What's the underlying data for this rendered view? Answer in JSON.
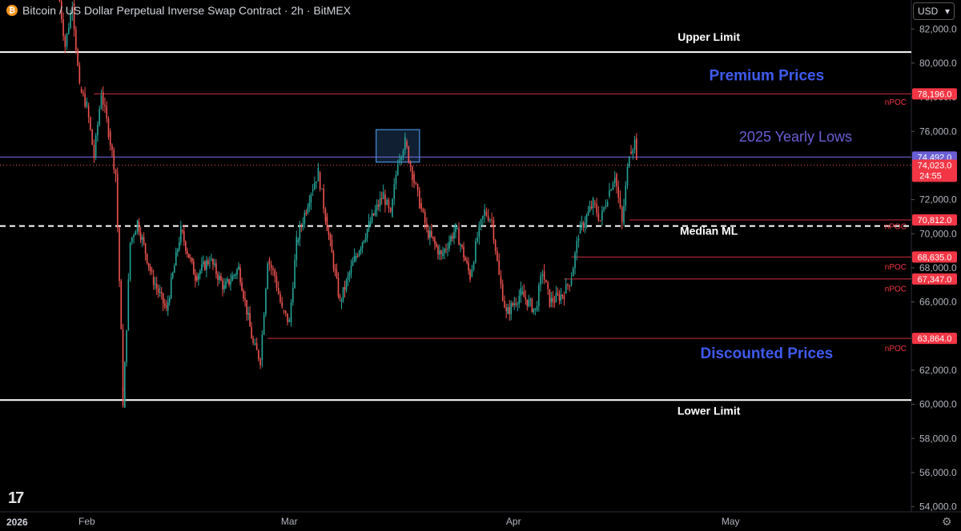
{
  "header": {
    "title": "Bitcoin / US Dollar Perpetual Inverse Swap Contract · 2h · BitMEX",
    "currency": "USD",
    "currency_caret": "▾",
    "btc_glyph": "₿",
    "year": "2026",
    "logo_text": "17",
    "settings_icon": "gear-icon"
  },
  "chart_data": {
    "type": "candlestick",
    "title": "Bitcoin / US Dollar Perpetual Inverse Swap Contract · 2h · BitMEX",
    "timeframe": "2h",
    "exchange": "BitMEX",
    "x_range": [
      "2026-01-20",
      "2026-05-26"
    ],
    "y_range": [
      53700,
      83700
    ],
    "x_ticks": [
      {
        "label": "Feb",
        "date": "2026-02-01"
      },
      {
        "label": "Mar",
        "date": "2026-03-01"
      },
      {
        "label": "Apr",
        "date": "2026-04-01"
      },
      {
        "label": "May",
        "date": "2026-05-01"
      }
    ],
    "y_ticks": [
      "54,000.0",
      "56,000.0",
      "58,000.0",
      "60,000.0",
      "62,000.0",
      "64,000.0",
      "66,000.0",
      "68,000.0",
      "70,000.0",
      "72,000.0",
      "74,000.0",
      "76,000.0",
      "78,000.0",
      "80,000.0",
      "82,000.0"
    ],
    "y_tick_values": [
      54000,
      56000,
      58000,
      60000,
      62000,
      64000,
      66000,
      68000,
      70000,
      72000,
      74000,
      76000,
      78000,
      80000,
      82000
    ],
    "price_path": [
      [
        "2026-01-28",
        84500
      ],
      [
        "2026-01-29",
        81000
      ],
      [
        "2026-01-30",
        83500
      ],
      [
        "2026-01-31",
        78500
      ],
      [
        "2026-02-01",
        77500
      ],
      [
        "2026-02-02",
        74500
      ],
      [
        "2026-02-03",
        78300
      ],
      [
        "2026-02-04",
        76000
      ],
      [
        "2026-02-05",
        73500
      ],
      [
        "2026-02-06",
        61000
      ],
      [
        "2026-02-06",
        59800
      ],
      [
        "2026-02-07",
        69500
      ],
      [
        "2026-02-08",
        70700
      ],
      [
        "2026-02-10",
        67500
      ],
      [
        "2026-02-12",
        65500
      ],
      [
        "2026-02-14",
        70200
      ],
      [
        "2026-02-16",
        67500
      ],
      [
        "2026-02-18",
        68500
      ],
      [
        "2026-02-20",
        66800
      ],
      [
        "2026-02-22",
        68000
      ],
      [
        "2026-02-24",
        63500
      ],
      [
        "2026-02-25",
        62600
      ],
      [
        "2026-02-26",
        68500
      ],
      [
        "2026-02-27",
        67500
      ],
      [
        "2026-02-28",
        65500
      ],
      [
        "2026-03-01",
        64800
      ],
      [
        "2026-03-02",
        69500
      ],
      [
        "2026-03-04",
        72500
      ],
      [
        "2026-03-05",
        73600
      ],
      [
        "2026-03-06",
        71000
      ],
      [
        "2026-03-08",
        66000
      ],
      [
        "2026-03-10",
        68500
      ],
      [
        "2026-03-12",
        70500
      ],
      [
        "2026-03-14",
        72300
      ],
      [
        "2026-03-15",
        71000
      ],
      [
        "2026-03-16",
        74300
      ],
      [
        "2026-03-17",
        75400
      ],
      [
        "2026-03-18",
        73500
      ],
      [
        "2026-03-19",
        71800
      ],
      [
        "2026-03-20",
        70200
      ],
      [
        "2026-03-22",
        68700
      ],
      [
        "2026-03-24",
        70300
      ],
      [
        "2026-03-26",
        67500
      ],
      [
        "2026-03-27",
        69800
      ],
      [
        "2026-03-28",
        71300
      ],
      [
        "2026-03-29",
        70800
      ],
      [
        "2026-03-30",
        67500
      ],
      [
        "2026-03-31",
        65300
      ],
      [
        "2026-04-02",
        66500
      ],
      [
        "2026-04-04",
        65500
      ],
      [
        "2026-04-05",
        67800
      ],
      [
        "2026-04-06",
        66000
      ],
      [
        "2026-04-08",
        66500
      ],
      [
        "2026-04-09",
        67500
      ],
      [
        "2026-04-10",
        70000
      ],
      [
        "2026-04-12",
        71800
      ],
      [
        "2026-04-13",
        70800
      ],
      [
        "2026-04-14",
        72200
      ],
      [
        "2026-04-15",
        73500
      ],
      [
        "2026-04-16",
        70600
      ],
      [
        "2026-04-17",
        74800
      ],
      [
        "2026-04-18",
        75600
      ],
      [
        "2026-04-18",
        74023
      ]
    ],
    "horizontal_levels": [
      {
        "name": "Upper Limit",
        "value": 80650,
        "color": "#ffffff",
        "style": "solid",
        "start": "2026-01-20"
      },
      {
        "name": "Lower Limit",
        "value": 60250,
        "color": "#ffffff",
        "style": "solid",
        "start": "2026-01-20"
      },
      {
        "name": "Median ML",
        "value": 70450,
        "color": "#ffffff",
        "style": "dashed",
        "start": "2026-01-20"
      },
      {
        "name": "2025 Yearly Lows",
        "value": 74492,
        "color": "#7b6ee6",
        "style": "solid",
        "start": "2026-01-20"
      },
      {
        "name": "nPOC",
        "value": 78196,
        "color": "#f23645",
        "style": "solid",
        "start": "2026-02-02"
      },
      {
        "name": "nPOC",
        "value": 70812,
        "color": "#f23645",
        "style": "solid",
        "start": "2026-04-17"
      },
      {
        "name": "nPOC",
        "value": 68635,
        "color": "#f23645",
        "style": "solid",
        "start": "2026-04-09"
      },
      {
        "name": "nPOC",
        "value": 67347,
        "color": "#f23645",
        "style": "solid",
        "start": "2026-04-08"
      },
      {
        "name": "nPOC",
        "value": 63864,
        "color": "#f23645",
        "style": "solid",
        "start": "2026-02-26"
      }
    ],
    "highlight_box": {
      "x_start": "2026-03-13",
      "x_end": "2026-03-19",
      "y_low": 74200,
      "y_high": 76100,
      "color": "#4a90e2"
    },
    "current_price": 74023,
    "annotations": [
      {
        "text": "Upper Limit",
        "date": "2026-04-28",
        "value": 81300,
        "color": "#ffffff",
        "weight": "bold",
        "size": 14
      },
      {
        "text": "Premium Prices",
        "date": "2026-05-06",
        "value": 79000,
        "color": "#3f5bf0",
        "weight": "bold",
        "size": 19
      },
      {
        "text": "2025 Yearly Lows",
        "date": "2026-05-10",
        "value": 75400,
        "color": "#6b5fd6",
        "weight": "normal",
        "size": 18
      },
      {
        "text": "Median ML",
        "date": "2026-04-28",
        "value": 69950,
        "color": "#ffffff",
        "weight": "bold",
        "size": 14
      },
      {
        "text": "Discounted Prices",
        "date": "2026-05-06",
        "value": 62700,
        "color": "#3f5bf0",
        "weight": "bold",
        "size": 19
      },
      {
        "text": "Lower Limit",
        "date": "2026-04-28",
        "value": 59400,
        "color": "#ffffff",
        "weight": "bold",
        "size": 14
      }
    ],
    "npoc_labels": [
      {
        "text": "nPOC",
        "value": 77740
      },
      {
        "text": "nPOC",
        "value": 70450
      },
      {
        "text": "nPOC",
        "value": 68100
      },
      {
        "text": "nPOC",
        "value": 66800
      },
      {
        "text": "nPOC",
        "value": 63300
      }
    ],
    "price_labels": [
      {
        "text": "78,196.0",
        "value": 78196,
        "color": "#f23645"
      },
      {
        "text": "74,492.0",
        "value": 74492,
        "color": "#6b5fd6"
      },
      {
        "text": "70,812.0",
        "value": 70812,
        "color": "#f23645"
      },
      {
        "text": "68,635.0",
        "value": 68635,
        "color": "#f23645"
      },
      {
        "text": "67,347.0",
        "value": 67347,
        "color": "#f23645"
      },
      {
        "text": "63,864.0",
        "value": 63864,
        "color": "#f23645"
      }
    ],
    "current_label": {
      "price": "74,023.0",
      "countdown": "24:55",
      "color": "#f23645"
    },
    "colors": {
      "up": "#26a69a",
      "down": "#ef5350",
      "grid": "#1a1a1a",
      "axis_text": "#b2b5be"
    }
  }
}
